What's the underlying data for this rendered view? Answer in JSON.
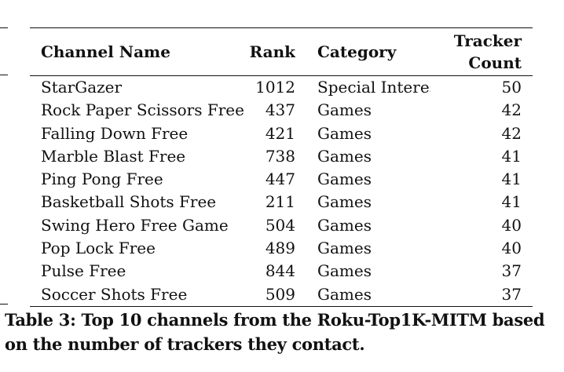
{
  "table": {
    "headers": {
      "name": "Channel Name",
      "rank": "Rank",
      "category": "Category",
      "count_line1": "Tracker",
      "count_line2": "Count"
    },
    "rows": [
      {
        "name": "StarGazer",
        "rank": "1012",
        "category": "Special Interest",
        "count": "50"
      },
      {
        "name": "Rock Paper Scissors Free",
        "rank": "437",
        "category": "Games",
        "count": "42"
      },
      {
        "name": "Falling Down Free",
        "rank": "421",
        "category": "Games",
        "count": "42"
      },
      {
        "name": "Marble Blast Free",
        "rank": "738",
        "category": "Games",
        "count": "41"
      },
      {
        "name": "Ping Pong Free",
        "rank": "447",
        "category": "Games",
        "count": "41"
      },
      {
        "name": "Basketball Shots Free",
        "rank": "211",
        "category": "Games",
        "count": "41"
      },
      {
        "name": "Swing Hero Free Game",
        "rank": "504",
        "category": "Games",
        "count": "40"
      },
      {
        "name": "Pop Lock Free",
        "rank": "489",
        "category": "Games",
        "count": "40"
      },
      {
        "name": "Pulse Free",
        "rank": "844",
        "category": "Games",
        "count": "37"
      },
      {
        "name": "Soccer Shots Free",
        "rank": "509",
        "category": "Games",
        "count": "37"
      }
    ]
  },
  "caption": "Table 3: Top 10 channels from the Roku-Top1K-MITM based on the number of trackers they contact."
}
